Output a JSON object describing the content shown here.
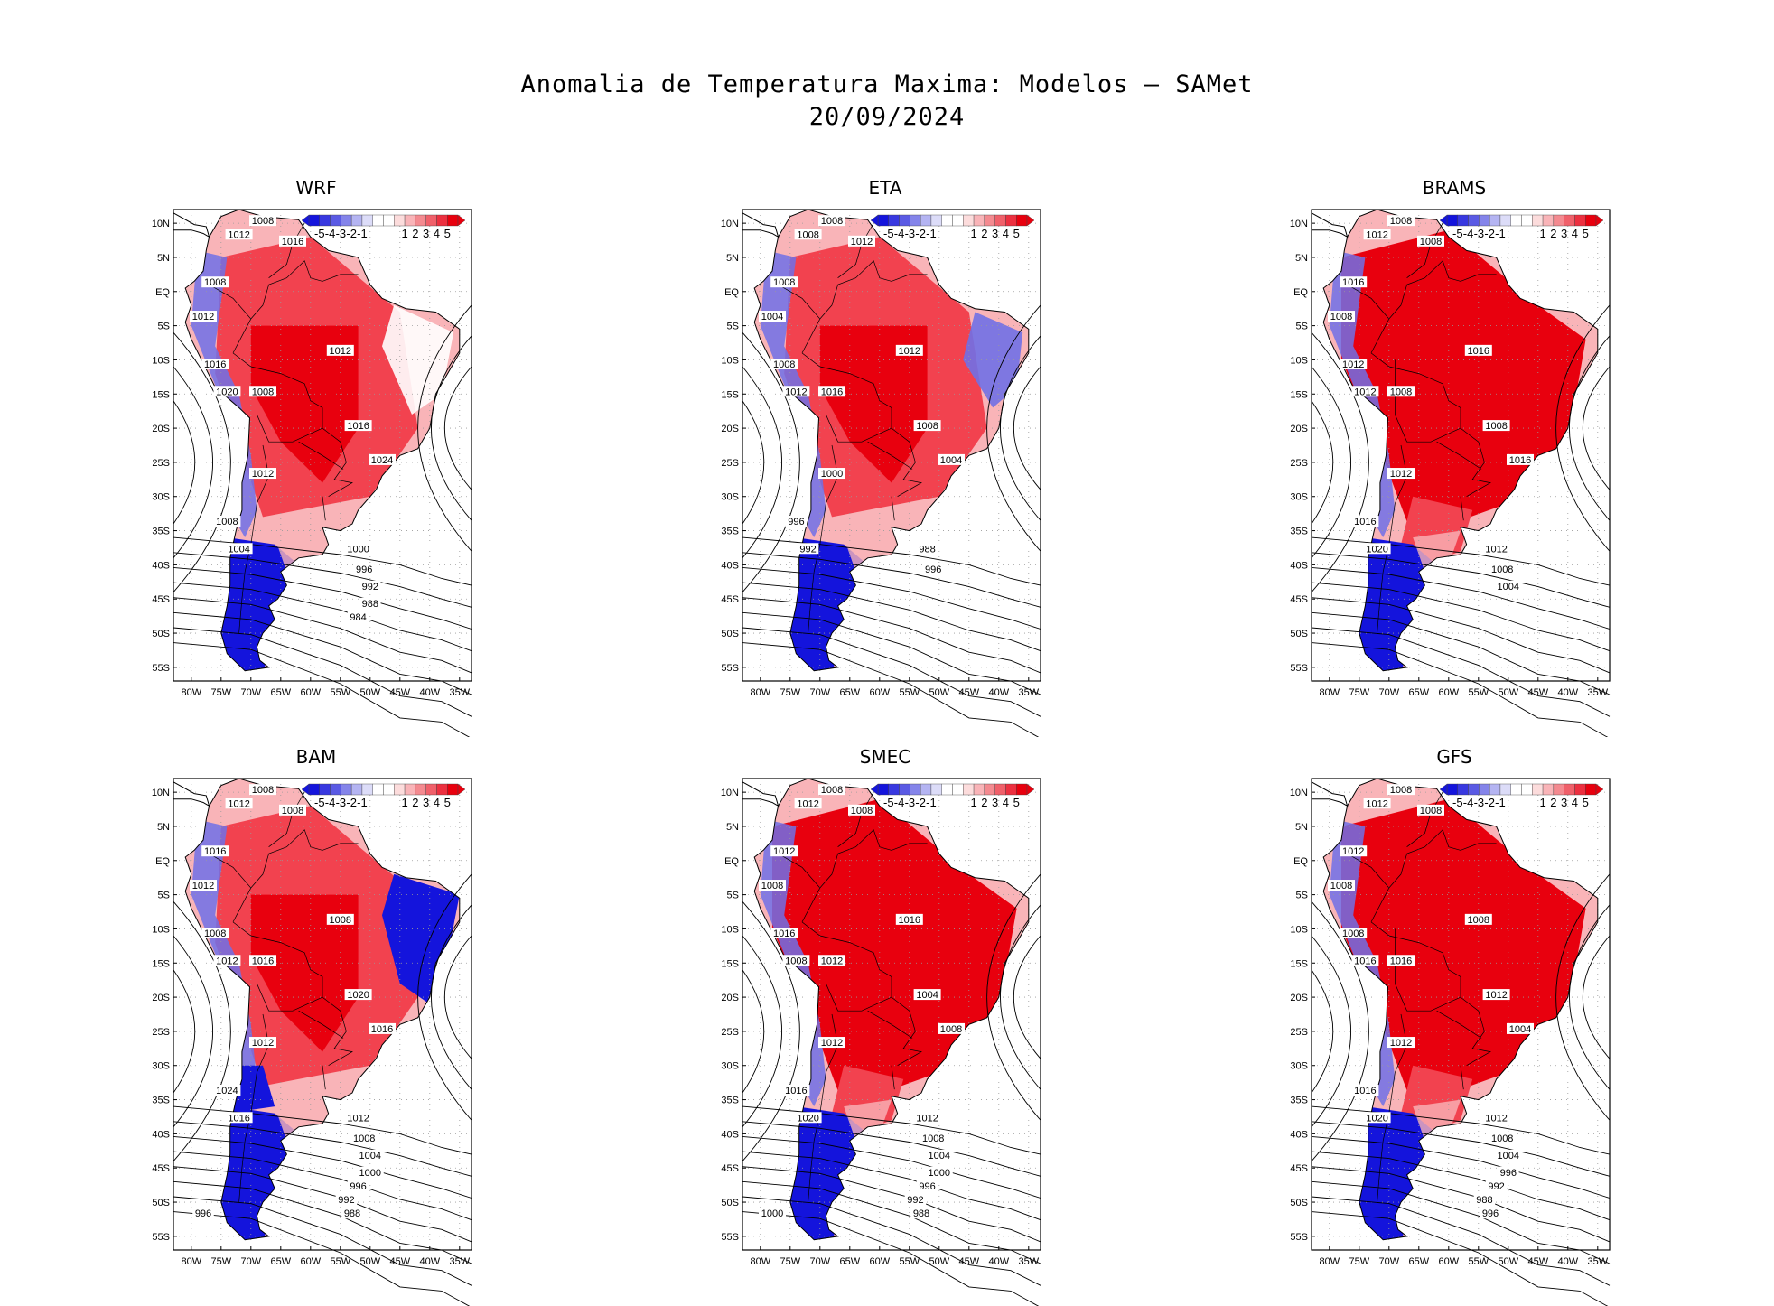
{
  "title": {
    "line1": "Anomalia de Temperatura Maxima: Modelos — SAMet",
    "line2": "20/09/2024"
  },
  "colors": {
    "warm_strong": "#e8000e",
    "warm_mid": "#f2424f",
    "warm_light": "#f9b4b8",
    "neutral": "#ffffff",
    "cool_light": "#c4c4f2",
    "cool_mid": "#7070e6",
    "cool_strong": "#1414dc",
    "contour": "#000000",
    "grid": "#9a9a9a"
  },
  "axes": {
    "lat_ticks": [
      "10N",
      "5N",
      "EQ",
      "5S",
      "10S",
      "15S",
      "20S",
      "25S",
      "30S",
      "35S",
      "40S",
      "45S",
      "50S",
      "55S"
    ],
    "lon_ticks": [
      "80W",
      "75W",
      "70W",
      "65W",
      "60W",
      "55W",
      "50W",
      "45W",
      "40W",
      "35W"
    ]
  },
  "colorbar": {
    "labels": [
      "-5",
      "-4",
      "-3",
      "-2",
      "-1",
      "1",
      "2",
      "3",
      "4",
      "5"
    ],
    "colors": [
      "#1414dc",
      "#3838e0",
      "#5a5ae4",
      "#8484ea",
      "#b4b4f2",
      "#dcdcf8",
      "#ffffff",
      "#ffffff",
      "#fcdcdc",
      "#f9b4b8",
      "#f48a90",
      "#f0606a",
      "#ec3040",
      "#e8000e"
    ]
  },
  "panels": [
    {
      "name": "WRF",
      "interior": "warm",
      "east": "neutral",
      "south": "cool",
      "labels": [
        "1008",
        "1012",
        "1016",
        "1008",
        "1012",
        "1016",
        "1020",
        "1008",
        "1012",
        "1016",
        "1024",
        "1012",
        "1008",
        "1004",
        "1000",
        "996",
        "992",
        "988",
        "984"
      ]
    },
    {
      "name": "ETA",
      "interior": "warm",
      "east": "cool",
      "south": "cool",
      "labels": [
        "1008",
        "1008",
        "1012",
        "1008",
        "1004",
        "1008",
        "1012",
        "1016",
        "1012",
        "1008",
        "1004",
        "1000",
        "996",
        "992",
        "988",
        "996"
      ]
    },
    {
      "name": "BRAMS",
      "interior": "warm_strong",
      "east": "warm",
      "south": "cool",
      "labels": [
        "1008",
        "1012",
        "1008",
        "1016",
        "1008",
        "1012",
        "1012",
        "1008",
        "1016",
        "1008",
        "1016",
        "1012",
        "1016",
        "1020",
        "1012",
        "1008",
        "1004"
      ]
    },
    {
      "name": "BAM",
      "interior": "warm",
      "east": "cool_strong",
      "south": "cool_strong",
      "labels": [
        "1008",
        "1012",
        "1008",
        "1016",
        "1012",
        "1008",
        "1012",
        "1016",
        "1008",
        "1020",
        "1016",
        "1012",
        "1024",
        "1016",
        "1012",
        "1008",
        "1004",
        "1000",
        "996",
        "992",
        "988",
        "996"
      ]
    },
    {
      "name": "SMEC",
      "interior": "warm_strong",
      "east": "warm",
      "south": "cool",
      "labels": [
        "1008",
        "1012",
        "1008",
        "1012",
        "1008",
        "1016",
        "1008",
        "1012",
        "1016",
        "1004",
        "1008",
        "1012",
        "1016",
        "1020",
        "1012",
        "1008",
        "1004",
        "1000",
        "996",
        "992",
        "988",
        "1000"
      ]
    },
    {
      "name": "GFS",
      "interior": "warm_strong",
      "east": "warm",
      "south": "cool",
      "labels": [
        "1008",
        "1012",
        "1008",
        "1012",
        "1008",
        "1008",
        "1016",
        "1016",
        "1008",
        "1012",
        "1004",
        "1012",
        "1016",
        "1020",
        "1012",
        "1008",
        "1004",
        "996",
        "992",
        "988",
        "996"
      ]
    }
  ]
}
